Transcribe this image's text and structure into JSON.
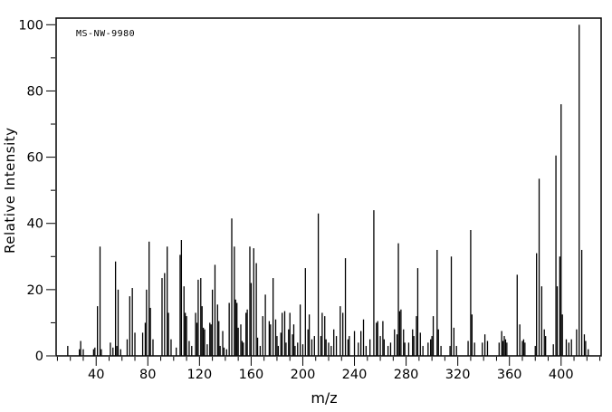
{
  "figure": {
    "plot_label": "MS-NW-9980",
    "x_axis_title": "m/z",
    "y_axis_title": "Relative Intensity"
  },
  "colors": {
    "foreground": "#000000",
    "background": "#ffffff"
  },
  "chart_data": {
    "type": "bar",
    "title": "MS-NW-9980",
    "xlabel": "m/z",
    "ylabel": "Relative Intensity",
    "xlim": [
      9,
      431
    ],
    "ylim": [
      0,
      102
    ],
    "grid": false,
    "x_major_ticks": [
      40,
      80,
      120,
      160,
      200,
      240,
      280,
      320,
      360,
      400
    ],
    "x_tick_labels": [
      "40",
      "80",
      "120",
      "160",
      "200",
      "240",
      "280",
      "320",
      "360",
      "400"
    ],
    "x_minor_tick_interval": 10,
    "y_major_ticks": [
      0,
      20,
      40,
      60,
      80,
      100
    ],
    "y_tick_labels": [
      "0",
      "20",
      "40",
      "60",
      "80",
      "100"
    ],
    "y_minor_tick_interval": 10,
    "series_name": "relative-intensity-peaks",
    "peaks": [
      [
        18,
        3
      ],
      [
        27,
        2
      ],
      [
        28,
        4.5
      ],
      [
        30,
        2
      ],
      [
        38,
        2
      ],
      [
        39,
        2.5
      ],
      [
        41,
        15
      ],
      [
        43,
        33
      ],
      [
        44,
        2
      ],
      [
        51,
        4
      ],
      [
        53,
        2.5
      ],
      [
        55,
        28.5
      ],
      [
        56,
        3
      ],
      [
        57,
        20
      ],
      [
        59,
        2
      ],
      [
        64,
        5
      ],
      [
        66,
        18
      ],
      [
        68,
        20.5
      ],
      [
        70,
        7
      ],
      [
        76,
        7
      ],
      [
        78,
        10
      ],
      [
        79,
        20
      ],
      [
        81,
        34.5
      ],
      [
        82,
        14.5
      ],
      [
        84,
        5
      ],
      [
        91,
        23.5
      ],
      [
        93,
        25
      ],
      [
        95,
        33
      ],
      [
        96,
        13
      ],
      [
        98,
        5
      ],
      [
        102,
        2.5
      ],
      [
        105,
        30.5
      ],
      [
        106,
        35
      ],
      [
        108,
        21
      ],
      [
        109,
        13
      ],
      [
        110,
        12
      ],
      [
        112,
        4.5
      ],
      [
        114,
        3
      ],
      [
        117,
        13
      ],
      [
        118,
        10
      ],
      [
        119,
        23
      ],
      [
        121,
        23.5
      ],
      [
        122,
        15
      ],
      [
        123,
        8.5
      ],
      [
        124,
        8
      ],
      [
        126,
        3.5
      ],
      [
        128,
        10
      ],
      [
        129,
        9.5
      ],
      [
        130,
        20
      ],
      [
        132,
        27.5
      ],
      [
        134,
        15.5
      ],
      [
        135,
        10.5
      ],
      [
        136,
        3
      ],
      [
        138,
        7.5
      ],
      [
        139,
        2.5
      ],
      [
        141,
        2
      ],
      [
        143,
        16
      ],
      [
        145,
        41.5
      ],
      [
        147,
        33
      ],
      [
        148,
        17
      ],
      [
        149,
        16
      ],
      [
        150,
        8.5
      ],
      [
        152,
        9.5
      ],
      [
        153,
        4.5
      ],
      [
        154,
        4
      ],
      [
        156,
        13
      ],
      [
        157,
        14
      ],
      [
        159,
        33
      ],
      [
        160,
        22
      ],
      [
        162,
        32.5
      ],
      [
        164,
        28
      ],
      [
        165,
        5.5
      ],
      [
        167,
        3
      ],
      [
        169,
        12
      ],
      [
        171,
        18.5
      ],
      [
        174,
        10.5
      ],
      [
        175,
        9.5
      ],
      [
        177,
        23.5
      ],
      [
        179,
        11
      ],
      [
        180,
        6
      ],
      [
        181,
        3
      ],
      [
        183,
        7
      ],
      [
        184,
        13
      ],
      [
        186,
        13.5
      ],
      [
        187,
        4
      ],
      [
        189,
        8
      ],
      [
        190,
        13
      ],
      [
        192,
        6.5
      ],
      [
        193,
        9.5
      ],
      [
        194,
        3
      ],
      [
        196,
        4
      ],
      [
        198,
        15.5
      ],
      [
        200,
        3.5
      ],
      [
        202,
        26.5
      ],
      [
        204,
        8
      ],
      [
        205,
        12.5
      ],
      [
        207,
        5
      ],
      [
        209,
        6
      ],
      [
        212,
        43
      ],
      [
        214,
        6
      ],
      [
        215,
        13
      ],
      [
        217,
        12
      ],
      [
        218,
        5
      ],
      [
        220,
        4
      ],
      [
        222,
        3
      ],
      [
        224,
        8
      ],
      [
        226,
        6
      ],
      [
        229,
        15
      ],
      [
        231,
        13
      ],
      [
        233,
        29.5
      ],
      [
        235,
        5
      ],
      [
        236,
        6
      ],
      [
        240,
        7.5
      ],
      [
        243,
        4
      ],
      [
        245,
        7.5
      ],
      [
        247,
        11
      ],
      [
        249,
        3
      ],
      [
        252,
        5
      ],
      [
        255,
        44
      ],
      [
        257,
        10
      ],
      [
        258,
        10.5
      ],
      [
        260,
        6
      ],
      [
        262,
        10.5
      ],
      [
        263,
        5
      ],
      [
        266,
        3
      ],
      [
        268,
        4
      ],
      [
        271,
        8
      ],
      [
        273,
        6.5
      ],
      [
        274,
        34
      ],
      [
        275,
        13.5
      ],
      [
        276,
        14
      ],
      [
        278,
        8
      ],
      [
        279,
        4
      ],
      [
        282,
        4
      ],
      [
        285,
        8
      ],
      [
        286,
        6
      ],
      [
        288,
        12
      ],
      [
        289,
        26.5
      ],
      [
        291,
        7
      ],
      [
        293,
        3
      ],
      [
        297,
        4
      ],
      [
        299,
        5
      ],
      [
        300,
        6
      ],
      [
        301,
        12
      ],
      [
        304,
        32
      ],
      [
        305,
        8
      ],
      [
        307,
        3
      ],
      [
        314,
        3
      ],
      [
        315,
        30
      ],
      [
        317,
        8.5
      ],
      [
        319,
        3
      ],
      [
        328,
        4.5
      ],
      [
        330,
        38
      ],
      [
        331,
        12.5
      ],
      [
        333,
        4
      ],
      [
        339,
        4
      ],
      [
        341,
        6.5
      ],
      [
        343,
        4.5
      ],
      [
        352,
        4
      ],
      [
        354,
        7.5
      ],
      [
        355,
        4.5
      ],
      [
        356,
        6
      ],
      [
        357,
        5
      ],
      [
        358,
        4
      ],
      [
        366,
        24.5
      ],
      [
        368,
        9.5
      ],
      [
        370,
        4.5
      ],
      [
        371,
        5
      ],
      [
        372,
        4
      ],
      [
        380,
        3
      ],
      [
        381,
        31
      ],
      [
        383,
        53.5
      ],
      [
        385,
        21
      ],
      [
        387,
        8
      ],
      [
        388,
        6
      ],
      [
        394,
        3.5
      ],
      [
        396,
        60.5
      ],
      [
        397,
        21
      ],
      [
        399,
        30
      ],
      [
        400,
        76
      ],
      [
        401,
        12.5
      ],
      [
        404,
        5
      ],
      [
        406,
        4
      ],
      [
        408,
        5
      ],
      [
        412,
        8
      ],
      [
        414,
        100
      ],
      [
        416,
        32
      ],
      [
        418,
        6.5
      ],
      [
        419,
        4.5
      ],
      [
        421,
        2
      ]
    ]
  }
}
